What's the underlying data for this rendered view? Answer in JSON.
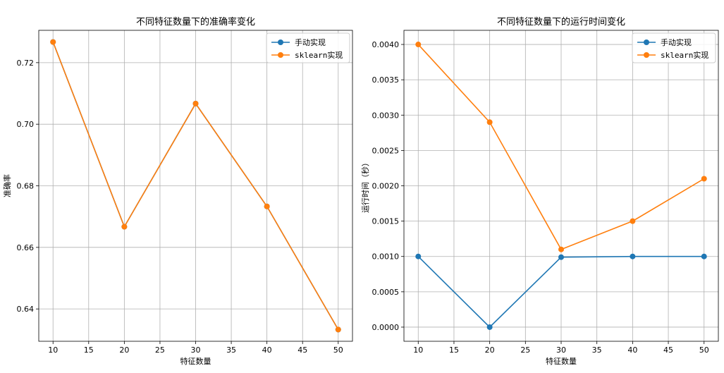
{
  "chart_data": [
    {
      "type": "line",
      "title": "不同特征数量下的准确率变化",
      "xlabel": "特征数量",
      "ylabel": "准确率",
      "x": [
        10,
        20,
        30,
        40,
        50
      ],
      "xlim": [
        8,
        52
      ],
      "xticks": [
        "10",
        "15",
        "20",
        "25",
        "30",
        "35",
        "40",
        "45",
        "50"
      ],
      "ylim": [
        0.6295,
        0.7305
      ],
      "yticks": [
        "0.64",
        "0.66",
        "0.68",
        "0.70",
        "0.72"
      ],
      "grid": true,
      "legend": "top-right",
      "series": [
        {
          "name": "手动实现",
          "color": "#1f77b4",
          "values": [
            0.7267,
            0.6667,
            0.7067,
            0.6733,
            0.6333
          ]
        },
        {
          "name": "sklearn实现",
          "color": "#ff7f0e",
          "values": [
            0.7267,
            0.6667,
            0.7067,
            0.6733,
            0.6333
          ]
        }
      ]
    },
    {
      "type": "line",
      "title": "不同特征数量下的运行时间变化",
      "xlabel": "特征数量",
      "ylabel": "运行时间（秒）",
      "x": [
        10,
        20,
        30,
        40,
        50
      ],
      "xlim": [
        8,
        52
      ],
      "xticks": [
        "10",
        "15",
        "20",
        "25",
        "30",
        "35",
        "40",
        "45",
        "50"
      ],
      "ylim": [
        -0.0002,
        0.0042
      ],
      "yticks": [
        "0.0000",
        "0.0005",
        "0.0010",
        "0.0015",
        "0.0020",
        "0.0025",
        "0.0030",
        "0.0035",
        "0.0040"
      ],
      "grid": true,
      "legend": "top-right",
      "series": [
        {
          "name": "手动实现",
          "color": "#1f77b4",
          "values": [
            0.001,
            0.0,
            0.00099,
            0.001,
            0.001
          ]
        },
        {
          "name": "sklearn实现",
          "color": "#ff7f0e",
          "values": [
            0.004,
            0.0029,
            0.0011,
            0.0015,
            0.0021
          ]
        }
      ]
    }
  ]
}
